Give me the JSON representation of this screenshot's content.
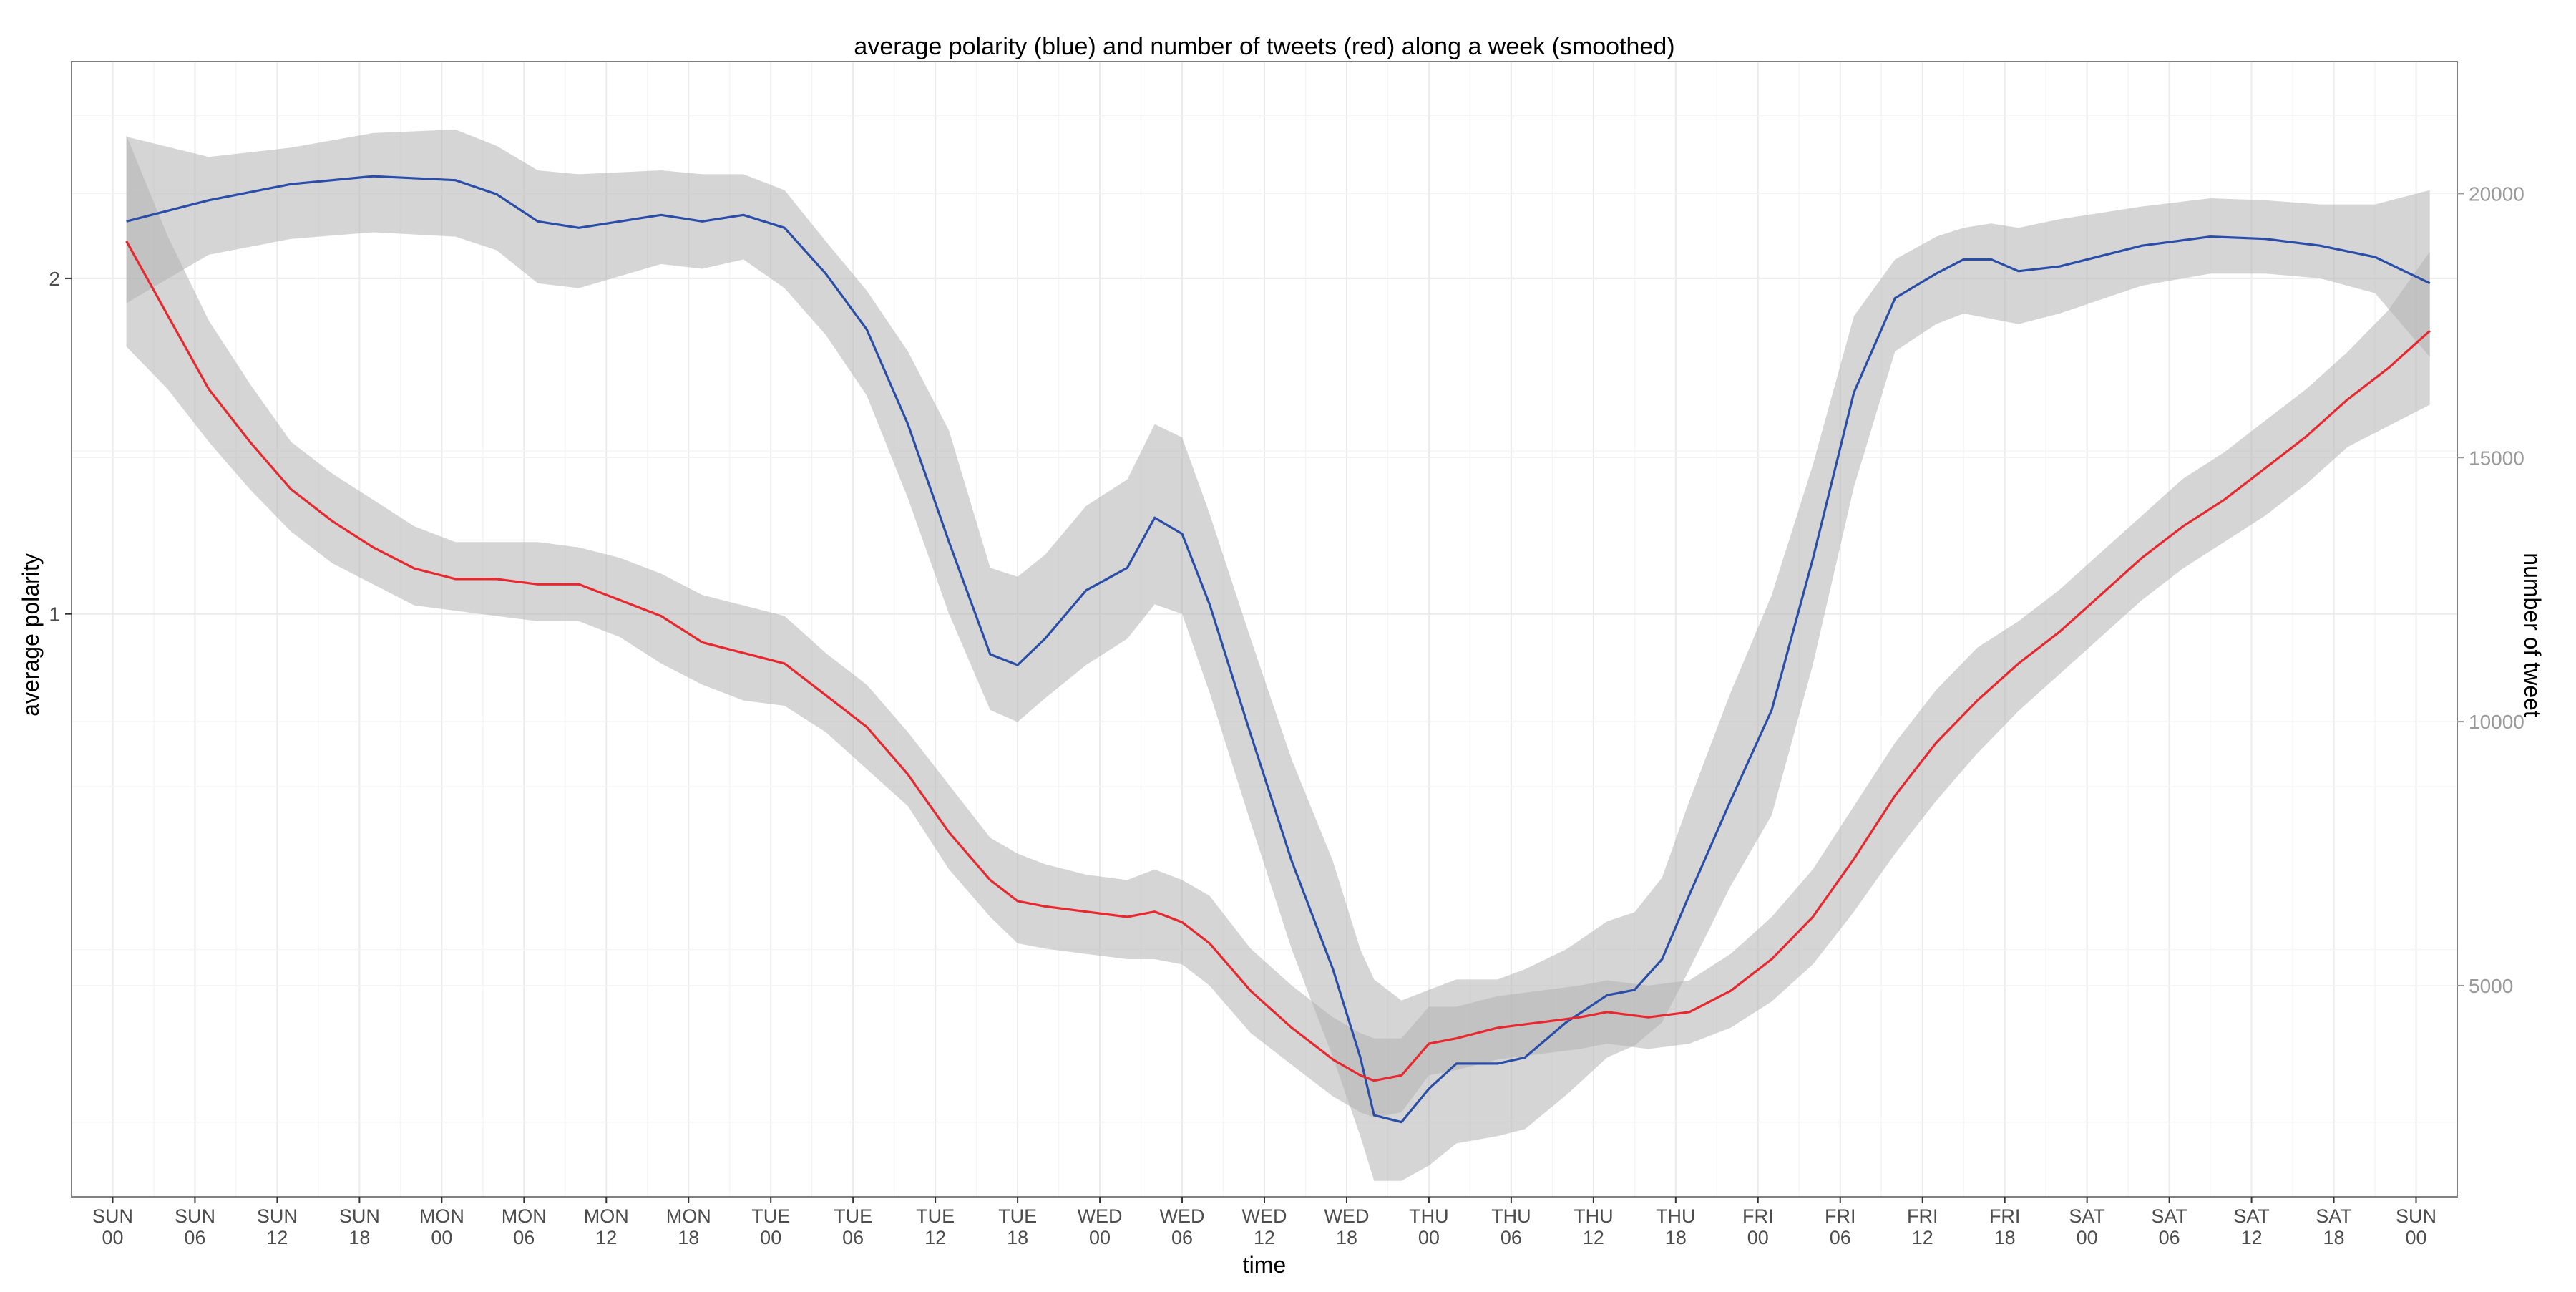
{
  "chart_data": {
    "type": "line",
    "title": "average polarity (blue) and number of tweets (red) along a week (smoothed)",
    "xlabel": "time",
    "ylabel_left": "average polarity",
    "ylabel_right": "number of tweet",
    "grid": true,
    "legend": "none",
    "x_ticks": [
      [
        "SUN",
        "00"
      ],
      [
        "SUN",
        "06"
      ],
      [
        "SUN",
        "12"
      ],
      [
        "SUN",
        "18"
      ],
      [
        "MON",
        "00"
      ],
      [
        "MON",
        "06"
      ],
      [
        "MON",
        "12"
      ],
      [
        "MON",
        "18"
      ],
      [
        "TUE",
        "00"
      ],
      [
        "TUE",
        "06"
      ],
      [
        "TUE",
        "12"
      ],
      [
        "TUE",
        "18"
      ],
      [
        "WED",
        "00"
      ],
      [
        "WED",
        "06"
      ],
      [
        "WED",
        "12"
      ],
      [
        "WED",
        "18"
      ],
      [
        "THU",
        "00"
      ],
      [
        "THU",
        "06"
      ],
      [
        "THU",
        "12"
      ],
      [
        "THU",
        "18"
      ],
      [
        "FRI",
        "00"
      ],
      [
        "FRI",
        "06"
      ],
      [
        "FRI",
        "12"
      ],
      [
        "FRI",
        "18"
      ],
      [
        "SAT",
        "00"
      ],
      [
        "SAT",
        "06"
      ],
      [
        "SAT",
        "12"
      ],
      [
        "SAT",
        "18"
      ],
      [
        "SUN",
        "00"
      ]
    ],
    "xlim_hours": [
      -3,
      171
    ],
    "y_left_ticks": [
      1,
      2
    ],
    "y_left_scale": "log",
    "y_left_lim": [
      0.3,
      3.13
    ],
    "y_right_ticks": [
      5000,
      10000,
      15000,
      20000
    ],
    "y_right_lim": [
      1000,
      22500
    ],
    "colors": {
      "polarity": "#2a4ea8",
      "tweets": "#e8282e",
      "band": "#b3b3b3"
    },
    "series": [
      {
        "name": "average polarity",
        "axis": "left",
        "points": [
          [
            1,
            2.25,
            1.9,
            2.68
          ],
          [
            7,
            2.35,
            2.1,
            2.57
          ],
          [
            13,
            2.43,
            2.17,
            2.62
          ],
          [
            19,
            2.47,
            2.2,
            2.7
          ],
          [
            25,
            2.45,
            2.18,
            2.72
          ],
          [
            28,
            2.38,
            2.12,
            2.63
          ],
          [
            31,
            2.25,
            1.98,
            2.5
          ],
          [
            34,
            2.22,
            1.96,
            2.48
          ],
          [
            40,
            2.28,
            2.06,
            2.5
          ],
          [
            43,
            2.25,
            2.04,
            2.48
          ],
          [
            46,
            2.28,
            2.08,
            2.48
          ],
          [
            49,
            2.22,
            1.96,
            2.4
          ],
          [
            52,
            2.02,
            1.78,
            2.16
          ],
          [
            55,
            1.8,
            1.57,
            1.95
          ],
          [
            58,
            1.48,
            1.27,
            1.72
          ],
          [
            61,
            1.16,
            1.0,
            1.46
          ],
          [
            64,
            0.92,
            0.82,
            1.1
          ],
          [
            66,
            0.9,
            0.8,
            1.08
          ],
          [
            68,
            0.95,
            0.84,
            1.13
          ],
          [
            71,
            1.05,
            0.9,
            1.25
          ],
          [
            74,
            1.1,
            0.95,
            1.32
          ],
          [
            76,
            1.22,
            1.02,
            1.48
          ],
          [
            78,
            1.18,
            1.0,
            1.44
          ],
          [
            80,
            1.02,
            0.85,
            1.23
          ],
          [
            83,
            0.78,
            0.65,
            0.95
          ],
          [
            86,
            0.6,
            0.5,
            0.74
          ],
          [
            89,
            0.48,
            0.4,
            0.6
          ],
          [
            91,
            0.4,
            0.34,
            0.5
          ],
          [
            92,
            0.355,
            0.31,
            0.47
          ],
          [
            94,
            0.35,
            0.31,
            0.45
          ],
          [
            96,
            0.375,
            0.32,
            0.46
          ],
          [
            98,
            0.395,
            0.335,
            0.47
          ],
          [
            101,
            0.395,
            0.34,
            0.47
          ],
          [
            103,
            0.4,
            0.345,
            0.48
          ],
          [
            106,
            0.43,
            0.37,
            0.5
          ],
          [
            109,
            0.455,
            0.4,
            0.53
          ],
          [
            111,
            0.46,
            0.41,
            0.54
          ],
          [
            113,
            0.49,
            0.43,
            0.58
          ],
          [
            115,
            0.56,
            0.48,
            0.68
          ],
          [
            118,
            0.68,
            0.57,
            0.85
          ],
          [
            121,
            0.82,
            0.66,
            1.04
          ],
          [
            124,
            1.12,
            0.9,
            1.36
          ],
          [
            127,
            1.58,
            1.3,
            1.85
          ],
          [
            130,
            1.92,
            1.72,
            2.08
          ],
          [
            133,
            2.02,
            1.82,
            2.18
          ],
          [
            135,
            2.08,
            1.86,
            2.22
          ],
          [
            137,
            2.08,
            1.84,
            2.24
          ],
          [
            139,
            2.03,
            1.82,
            2.22
          ],
          [
            142,
            2.05,
            1.86,
            2.26
          ],
          [
            148,
            2.14,
            1.97,
            2.32
          ],
          [
            153,
            2.18,
            2.02,
            2.36
          ],
          [
            157,
            2.17,
            2.02,
            2.35
          ],
          [
            161,
            2.14,
            2.0,
            2.33
          ],
          [
            165,
            2.09,
            1.94,
            2.33
          ],
          [
            169,
            1.98,
            1.7,
            2.4
          ]
        ]
      },
      {
        "name": "number of tweets",
        "axis": "right",
        "points": [
          [
            1,
            19100,
            17100,
            21100
          ],
          [
            4,
            17700,
            16300,
            19200
          ],
          [
            7,
            16300,
            15300,
            17600
          ],
          [
            10,
            15300,
            14400,
            16400
          ],
          [
            13,
            14400,
            13600,
            15300
          ],
          [
            16,
            13800,
            13000,
            14700
          ],
          [
            19,
            13300,
            12600,
            14200
          ],
          [
            22,
            12900,
            12200,
            13700
          ],
          [
            25,
            12700,
            12100,
            13400
          ],
          [
            28,
            12700,
            12000,
            13400
          ],
          [
            31,
            12600,
            11900,
            13400
          ],
          [
            34,
            12600,
            11900,
            13300
          ],
          [
            37,
            12300,
            11600,
            13100
          ],
          [
            40,
            12000,
            11100,
            12800
          ],
          [
            43,
            11500,
            10700,
            12400
          ],
          [
            46,
            11300,
            10400,
            12200
          ],
          [
            49,
            11100,
            10300,
            12000
          ],
          [
            52,
            10500,
            9800,
            11300
          ],
          [
            55,
            9900,
            9100,
            10700
          ],
          [
            58,
            9000,
            8400,
            9800
          ],
          [
            61,
            7900,
            7200,
            8800
          ],
          [
            64,
            7000,
            6300,
            7800
          ],
          [
            66,
            6600,
            5800,
            7500
          ],
          [
            68,
            6500,
            5700,
            7300
          ],
          [
            71,
            6400,
            5600,
            7100
          ],
          [
            74,
            6300,
            5500,
            7000
          ],
          [
            76,
            6400,
            5500,
            7200
          ],
          [
            78,
            6200,
            5400,
            7000
          ],
          [
            80,
            5800,
            5000,
            6700
          ],
          [
            83,
            4900,
            4100,
            5700
          ],
          [
            86,
            4200,
            3500,
            5000
          ],
          [
            89,
            3600,
            2900,
            4400
          ],
          [
            91,
            3300,
            2600,
            4100
          ],
          [
            92,
            3200,
            2500,
            4000
          ],
          [
            94,
            3300,
            2600,
            4000
          ],
          [
            96,
            3900,
            3300,
            4600
          ],
          [
            98,
            4000,
            3400,
            4600
          ],
          [
            101,
            4200,
            3600,
            4800
          ],
          [
            104,
            4300,
            3700,
            4900
          ],
          [
            107,
            4400,
            3800,
            5000
          ],
          [
            109,
            4500,
            3900,
            5100
          ],
          [
            112,
            4400,
            3800,
            5000
          ],
          [
            115,
            4500,
            3900,
            5100
          ],
          [
            118,
            4900,
            4200,
            5600
          ],
          [
            121,
            5500,
            4700,
            6300
          ],
          [
            124,
            6300,
            5400,
            7200
          ],
          [
            127,
            7400,
            6400,
            8400
          ],
          [
            130,
            8600,
            7500,
            9600
          ],
          [
            133,
            9600,
            8500,
            10600
          ],
          [
            136,
            10400,
            9400,
            11400
          ],
          [
            139,
            11100,
            10200,
            11900
          ],
          [
            142,
            11700,
            10900,
            12500
          ],
          [
            145,
            12400,
            11600,
            13200
          ],
          [
            148,
            13100,
            12300,
            13900
          ],
          [
            151,
            13700,
            12900,
            14600
          ],
          [
            154,
            14200,
            13400,
            15100
          ],
          [
            157,
            14800,
            13900,
            15700
          ],
          [
            160,
            15400,
            14500,
            16300
          ],
          [
            163,
            16100,
            15200,
            17000
          ],
          [
            166,
            16700,
            15600,
            17800
          ],
          [
            169,
            17400,
            16000,
            18900
          ]
        ]
      }
    ]
  }
}
